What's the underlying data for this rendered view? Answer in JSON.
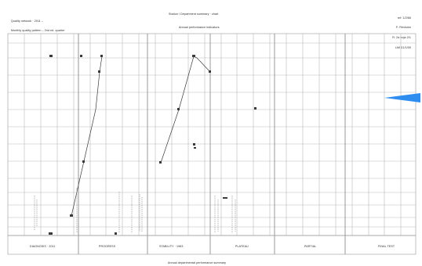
{
  "header": {
    "left_lines": [
      "Quality network · 2011 –",
      "Monthly quality pattern – 2nd ed. quarter"
    ],
    "center_title": "Station / Department summary · chart",
    "subtitle": "Annual performance indicators",
    "right_lines": [
      "ref: 1/2/66",
      "F: Revisión",
      "R: 2a hoja 2/1",
      "LMI 01/1/09"
    ]
  },
  "columns": [
    "DIAGNOSIS · 2011",
    "PROGRESS",
    "STABILITY · 1983",
    "PLATEAU",
    "PARTIAL",
    "FINAL TEST"
  ],
  "footer": "Annual departmental performance summary",
  "colors": {
    "grid": "#b9b9b9",
    "grid_strong": "#8e8e8e",
    "ink": "#3a3a3a",
    "marker": "#2f8df0"
  },
  "icons": {
    "marker": "blue-pointer-marker"
  }
}
